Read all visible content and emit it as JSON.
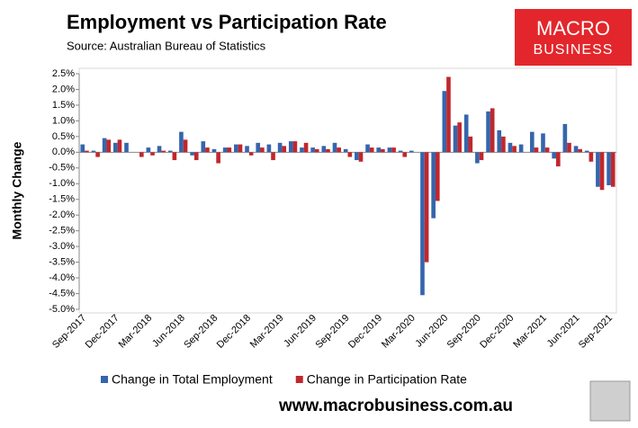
{
  "chart_data": {
    "type": "bar",
    "title": "Employment vs Participation Rate",
    "subtitle": "Source: Australian Bureau of Statistics",
    "y_label": "Monthly Change",
    "categories": [
      "Sep-2017",
      null,
      null,
      "Dec-2017",
      null,
      null,
      "Mar-2018",
      null,
      null,
      "Jun-2018",
      null,
      null,
      "Sep-2018",
      null,
      null,
      "Dec-2018",
      null,
      null,
      "Mar-2019",
      null,
      null,
      "Jun-2019",
      null,
      null,
      "Sep-2019",
      null,
      null,
      "Dec-2019",
      null,
      null,
      "Mar-2020",
      null,
      null,
      "Jun-2020",
      null,
      null,
      "Sep-2020",
      null,
      null,
      "Dec-2020",
      null,
      null,
      "Mar-2021",
      null,
      null,
      "Jun-2021",
      null,
      null,
      "Sep-2021"
    ],
    "series": [
      {
        "name": "Change in Total Employment",
        "color": "#3566ac",
        "values": [
          0.25,
          0.05,
          0.45,
          0.3,
          0.3,
          0.0,
          0.15,
          0.2,
          0.05,
          0.65,
          -0.1,
          0.35,
          0.1,
          0.15,
          0.25,
          0.2,
          0.3,
          0.25,
          0.3,
          0.35,
          0.15,
          0.15,
          0.2,
          0.3,
          0.1,
          -0.25,
          0.25,
          0.15,
          0.15,
          0.05,
          0.05,
          -4.55,
          -2.1,
          1.95,
          0.85,
          1.2,
          -0.35,
          1.3,
          0.7,
          0.3,
          0.25,
          0.65,
          0.6,
          -0.2,
          0.9,
          0.2,
          0.05,
          -1.1,
          -1.05
        ]
      },
      {
        "name": "Change in Participation Rate",
        "color": "#c1272d",
        "values": [
          0.05,
          -0.15,
          0.4,
          0.4,
          0.0,
          -0.15,
          -0.1,
          0.05,
          -0.25,
          0.4,
          -0.25,
          0.15,
          -0.35,
          0.15,
          0.25,
          -0.1,
          0.15,
          -0.25,
          0.2,
          0.35,
          0.3,
          0.1,
          0.1,
          0.15,
          -0.15,
          -0.3,
          0.15,
          0.1,
          0.15,
          -0.15,
          0.0,
          -3.5,
          -1.55,
          2.4,
          0.95,
          0.5,
          -0.25,
          1.4,
          0.5,
          0.2,
          0.0,
          0.15,
          0.15,
          -0.45,
          0.3,
          0.1,
          -0.3,
          -1.2,
          -1.1
        ]
      }
    ],
    "ylim": [
      -5,
      2.5
    ],
    "yticks": [
      {
        "value": -5,
        "label": "-5.0%"
      },
      {
        "value": -4.5,
        "label": "-4.5%"
      },
      {
        "value": -4,
        "label": "-4.0%"
      },
      {
        "value": -3.5,
        "label": "-3.5%"
      },
      {
        "value": -3,
        "label": "-3.0%"
      },
      {
        "value": -2.5,
        "label": "-2.5%"
      },
      {
        "value": -2,
        "label": "-2.0%"
      },
      {
        "value": -1.5,
        "label": "-1.5%"
      },
      {
        "value": -1,
        "label": "-1.0%"
      },
      {
        "value": -0.5,
        "label": "-0.5%"
      },
      {
        "value": 0,
        "label": "0.0%"
      },
      {
        "value": 0.5,
        "label": "0.5%"
      },
      {
        "value": 1,
        "label": "1.0%"
      },
      {
        "value": 1.5,
        "label": "1.5%"
      },
      {
        "value": 2,
        "label": "2.0%"
      },
      {
        "value": 2.5,
        "label": "2.5%"
      }
    ],
    "legend": "bottom"
  },
  "logo": {
    "line1": "MACRO",
    "line2": "BUSINESS"
  },
  "footer": "www.macrobusiness.com.au"
}
